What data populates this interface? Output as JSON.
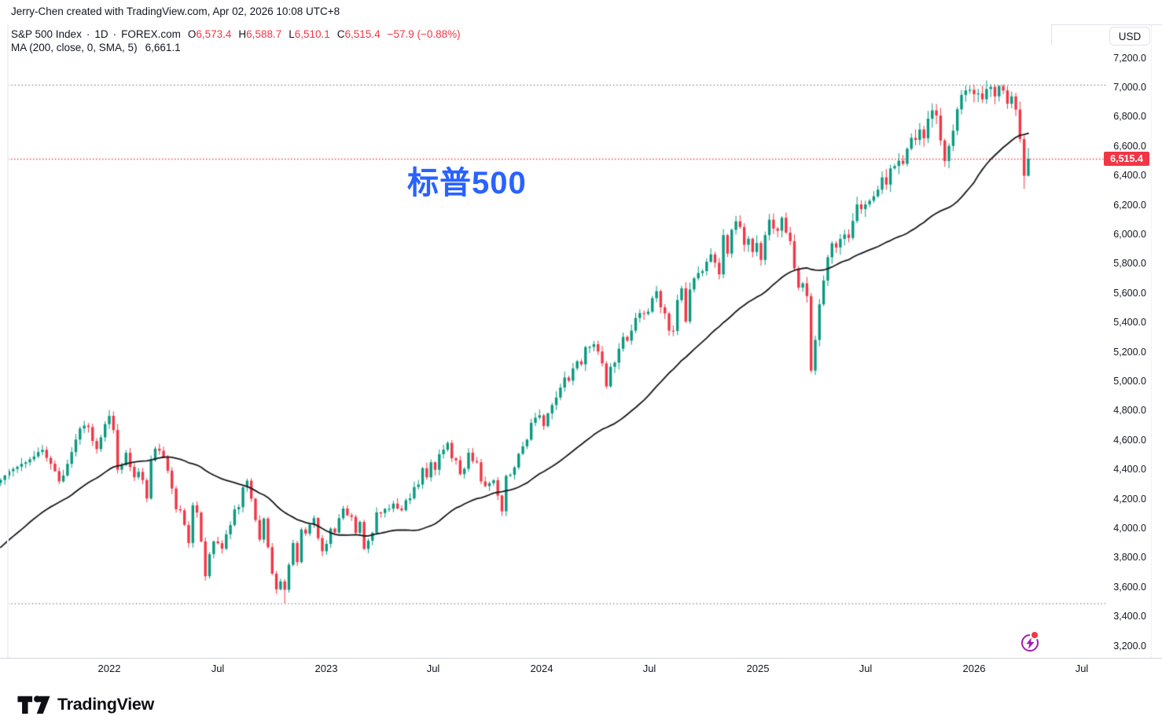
{
  "attribution": "Jerry-Chen created with TradingView.com, Apr 02, 2026 10:08 UTC+8",
  "legend": {
    "symbol_row": {
      "title": "S&P 500 Index",
      "sep": "·",
      "interval": "1D",
      "exchange": "FOREX.com",
      "o_label": "O",
      "o": "6,573.4",
      "h_label": "H",
      "h": "6,588.7",
      "l_label": "L",
      "l": "6,510.1",
      "c_label": "C",
      "c": "6,515.4",
      "change": "−57.9 (−0.88%)"
    },
    "ma_row": {
      "label": "MA (200, close, 0, SMA, 5)",
      "value": "6,661.1"
    }
  },
  "watermark": "标普500",
  "price_axis": {
    "currency": "USD",
    "last_price": "6,515.4",
    "labels": [
      "7,200.0",
      "7,000.0",
      "6,800.0",
      "6,600.0",
      "6,400.0",
      "6,200.0",
      "6,000.0",
      "5,800.0",
      "5,600.0",
      "5,400.0",
      "5,200.0",
      "5,000.0",
      "4,800.0",
      "4,600.0",
      "4,400.0",
      "4,200.0",
      "4,000.0",
      "3,800.0",
      "3,600.0",
      "3,400.0",
      "3,200.0"
    ]
  },
  "time_axis": {
    "labels": [
      {
        "label": "2022",
        "major": true
      },
      {
        "label": "Jul",
        "major": false
      },
      {
        "label": "2023",
        "major": true
      },
      {
        "label": "Jul",
        "major": false
      },
      {
        "label": "2024",
        "major": true
      },
      {
        "label": "Jul",
        "major": false
      },
      {
        "label": "2025",
        "major": true
      },
      {
        "label": "Jul",
        "major": false
      },
      {
        "label": "2026",
        "major": true
      },
      {
        "label": "Jul",
        "major": false
      }
    ]
  },
  "logo": {
    "text": "TradingView"
  },
  "chart_data": {
    "type": "candlestick",
    "symbol": "S&P 500 Index",
    "interval": "1D",
    "source": "FOREX.com",
    "currency": "USD",
    "title": "标普500",
    "last_bar": {
      "open": 6573.4,
      "high": 6588.7,
      "low": 6510.1,
      "close": 6515.4,
      "change": -57.9,
      "change_pct": -0.88
    },
    "ma200": {
      "period": 200,
      "input": "close",
      "offset": 0,
      "type": "SMA",
      "value": 6661.1
    },
    "y_axis": {
      "min": 3200,
      "max": 7200,
      "step": 200,
      "grid": false
    },
    "price_line": 6515.4,
    "range_high": 7019,
    "range_low": 3491,
    "weekly_closes": [
      4330,
      4360,
      4390,
      4405,
      4420,
      4440,
      4450,
      4470,
      4490,
      4520,
      4535,
      4480,
      4440,
      4390,
      4320,
      4360,
      4440,
      4520,
      4605,
      4680,
      4700,
      4690,
      4595,
      4540,
      4620,
      4710,
      4766,
      4670,
      4400,
      4432,
      4515,
      4419,
      4349,
      4385,
      4329,
      4204,
      4463,
      4543,
      4529,
      4488,
      4393,
      4272,
      4131,
      4123,
      4024,
      3901,
      4158,
      4108,
      3912,
      3675,
      3825,
      3912,
      3900,
      3862,
      3960,
      4023,
      4130,
      4145,
      4280,
      4325,
      4203,
      4057,
      3924,
      4067,
      3873,
      3693,
      3586,
      3640,
      3583,
      3753,
      3901,
      3771,
      3993,
      3965,
      4026,
      4071,
      3934,
      3845,
      3895,
      3999,
      3972,
      4070,
      4136,
      4090,
      4079,
      3970,
      4045,
      3861,
      3917,
      3971,
      4109,
      4105,
      4133,
      4134,
      4169,
      4136,
      4124,
      4192,
      4205,
      4282,
      4299,
      4410,
      4348,
      4450,
      4399,
      4505,
      4536,
      4582,
      4478,
      4464,
      4370,
      4406,
      4516,
      4458,
      4450,
      4320,
      4288,
      4308,
      4328,
      4224,
      4117,
      4358,
      4365,
      4415,
      4508,
      4559,
      4604,
      4719,
      4754,
      4770,
      4697,
      4783,
      4840,
      4891,
      4959,
      5027,
      5006,
      5089,
      5137,
      5117,
      5234,
      5235,
      5254,
      5204,
      5123,
      4967,
      5100,
      5128,
      5223,
      5304,
      5278,
      5346,
      5432,
      5465,
      5460,
      5475,
      5567,
      5615,
      5505,
      5463,
      5346,
      5344,
      5554,
      5634,
      5408,
      5626,
      5702,
      5738,
      5751,
      5815,
      5865,
      5808,
      5729,
      5996,
      5870,
      6032,
      6090,
      6051,
      5930,
      5971,
      5881,
      5942,
      5827,
      5996,
      6101,
      6041,
      6026,
      6114,
      6013,
      5955,
      5770,
      5639,
      5668,
      5581,
      5074,
      5283,
      5525,
      5687,
      5845,
      5940,
      5912,
      5970,
      6000,
      5977,
      6092,
      6205,
      6173,
      6205,
      6230,
      6260,
      6305,
      6389,
      6340,
      6450,
      6466,
      6502,
      6481,
      6584,
      6658,
      6644,
      6715,
      6655,
      6788,
      6845,
      6810,
      6640,
      6500,
      6603,
      6706,
      6852,
      6950,
      6980,
      6985,
      6955,
      6960,
      6920,
      6990,
      7005,
      6940,
      7010,
      6980,
      6890,
      6940,
      6850,
      6650,
      6400,
      6515.4
    ],
    "ma_prehistory": [
      3298,
      3340,
      3351,
      3465,
      3477,
      3509,
      3484,
      3435,
      3585,
      3638,
      3662,
      3699,
      3738,
      3768,
      3694,
      3722,
      3841,
      3756,
      3714,
      3811,
      3886,
      3906,
      3943,
      3974,
      3841,
      3901,
      3972,
      4019,
      4129,
      4185,
      4180,
      4134,
      4167,
      4204,
      4233,
      4155,
      4197,
      4247,
      4281,
      4298
    ],
    "wick_overrides": {
      "68": {
        "low": 3491
      },
      "239": {
        "high": 7019
      },
      "245": {
        "low": 6310
      },
      "246": {
        "high": 6589,
        "low": 6395
      }
    },
    "colors": {
      "up": "#089981",
      "down": "#f23645",
      "ma": "#16181d",
      "price_line": "#f23645",
      "range_line": "#787b86",
      "watermark": "#2962ff",
      "axis_text": "#131722"
    }
  }
}
